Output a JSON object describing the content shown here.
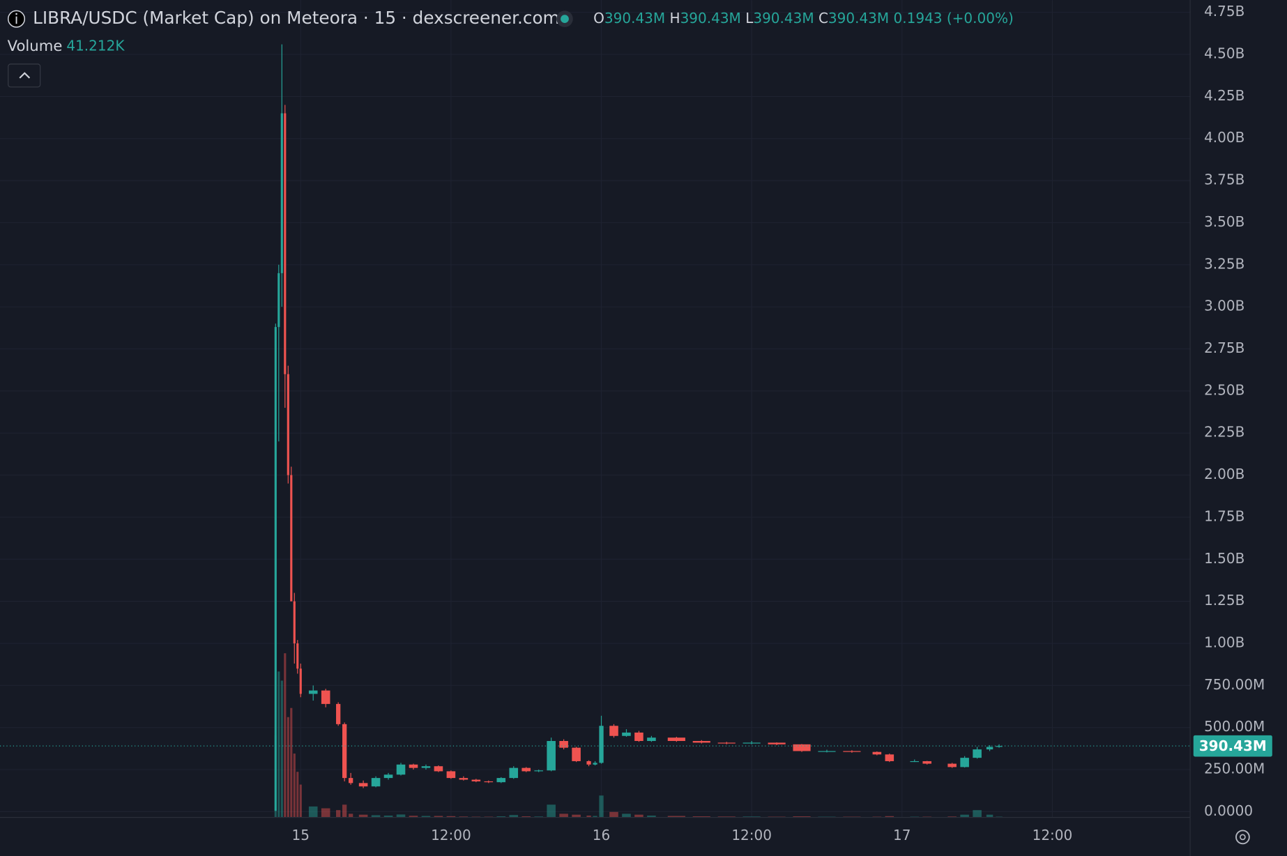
{
  "header": {
    "symbol": "LIBRA/USDC (Market Cap) on Meteora · 15 · dexscreener.com",
    "ohlc": [
      {
        "key": "O",
        "value": "390.43M"
      },
      {
        "key": "H",
        "value": "390.43M"
      },
      {
        "key": "L",
        "value": "390.43M"
      },
      {
        "key": "C",
        "value": "390.43M"
      }
    ],
    "change": "0.1943 (+0.00%)",
    "volume_title": "Volume",
    "volume_last": "41.212K"
  },
  "chart_data": {
    "type": "candlestick",
    "x": [
      -2,
      -1.75,
      -1.5,
      -1.25,
      -1,
      -0.75,
      -0.5,
      -0.25,
      0,
      1,
      2,
      3,
      3.5,
      4,
      5,
      6,
      7,
      8,
      9,
      10,
      11,
      12,
      13,
      14,
      15,
      16,
      17,
      18,
      19,
      20,
      21,
      22,
      23,
      23.5,
      24,
      25,
      26,
      27,
      28,
      30,
      32,
      34,
      36,
      38,
      40,
      42,
      44,
      46,
      47,
      49,
      50,
      52,
      53,
      54,
      55,
      55.75
    ],
    "open": [
      5,
      2880,
      3200,
      4150,
      2600,
      2000,
      1250,
      1000,
      850,
      700,
      720,
      640,
      520,
      200,
      170,
      150,
      200,
      220,
      280,
      260,
      270,
      240,
      200,
      190,
      180,
      175,
      200,
      260,
      240,
      245,
      420,
      380,
      300,
      280,
      290,
      510,
      450,
      470,
      420,
      440,
      420,
      410,
      405,
      410,
      400,
      360,
      360,
      355,
      340,
      300,
      300,
      285,
      265,
      320,
      370,
      385
    ],
    "high": [
      2900,
      3250,
      4560,
      4200,
      2650,
      2050,
      1300,
      1020,
      880,
      750,
      730,
      650,
      530,
      230,
      185,
      210,
      230,
      290,
      285,
      280,
      275,
      245,
      210,
      195,
      185,
      205,
      270,
      265,
      250,
      440,
      430,
      385,
      305,
      300,
      570,
      520,
      490,
      480,
      450,
      445,
      425,
      415,
      420,
      412,
      402,
      368,
      365,
      358,
      345,
      310,
      302,
      290,
      330,
      385,
      395,
      400
    ],
    "low": [
      5,
      2200,
      3000,
      2400,
      1950,
      1250,
      880,
      820,
      680,
      660,
      620,
      510,
      180,
      160,
      140,
      145,
      190,
      215,
      250,
      250,
      235,
      195,
      185,
      175,
      170,
      170,
      195,
      235,
      235,
      240,
      370,
      295,
      270,
      275,
      285,
      440,
      445,
      415,
      415,
      415,
      405,
      400,
      400,
      395,
      355,
      352,
      350,
      335,
      295,
      295,
      280,
      260,
      262,
      315,
      360,
      380
    ],
    "close": [
      2880,
      3200,
      4150,
      2600,
      2000,
      1250,
      1000,
      850,
      700,
      720,
      640,
      520,
      200,
      170,
      150,
      200,
      220,
      280,
      260,
      270,
      240,
      200,
      190,
      180,
      175,
      200,
      260,
      240,
      245,
      420,
      380,
      300,
      280,
      290,
      510,
      450,
      470,
      420,
      440,
      420,
      410,
      405,
      410,
      400,
      360,
      360,
      355,
      340,
      300,
      300,
      285,
      265,
      320,
      370,
      385,
      390.43
    ],
    "volume": [
      4500,
      8000,
      7500,
      9000,
      5500,
      6000,
      3500,
      2500,
      1800,
      600,
      500,
      400,
      700,
      200,
      150,
      120,
      100,
      160,
      90,
      80,
      80,
      70,
      50,
      40,
      40,
      60,
      130,
      60,
      50,
      700,
      200,
      150,
      100,
      80,
      1200,
      300,
      200,
      150,
      100,
      80,
      60,
      50,
      50,
      40,
      60,
      40,
      40,
      40,
      70,
      40,
      40,
      50,
      150,
      400,
      150,
      41.212
    ],
    "up_color": "#26a69a",
    "down_color": "#ef5350",
    "xlim": [
      -24,
      71
    ],
    "xticks": [
      {
        "value": 0,
        "label": "15"
      },
      {
        "value": 12,
        "label": "12:00"
      },
      {
        "value": 24,
        "label": "16"
      },
      {
        "value": 36,
        "label": "12:00"
      },
      {
        "value": 48,
        "label": "17"
      },
      {
        "value": 60,
        "label": "12:00"
      }
    ],
    "ylim": [
      0,
      4750
    ],
    "yticks": [
      {
        "value": 0,
        "label": "0.0000"
      },
      {
        "value": 250,
        "label": "250.00M"
      },
      {
        "value": 500,
        "label": "500.00M"
      },
      {
        "value": 750,
        "label": "750.00M"
      },
      {
        "value": 1000,
        "label": "1.00B"
      },
      {
        "value": 1250,
        "label": "1.25B"
      },
      {
        "value": 1500,
        "label": "1.50B"
      },
      {
        "value": 1750,
        "label": "1.75B"
      },
      {
        "value": 2000,
        "label": "2.00B"
      },
      {
        "value": 2250,
        "label": "2.25B"
      },
      {
        "value": 2500,
        "label": "2.50B"
      },
      {
        "value": 2750,
        "label": "2.75B"
      },
      {
        "value": 3000,
        "label": "3.00B"
      },
      {
        "value": 3250,
        "label": "3.25B"
      },
      {
        "value": 3500,
        "label": "3.50B"
      },
      {
        "value": 3750,
        "label": "3.75B"
      },
      {
        "value": 4000,
        "label": "4.00B"
      },
      {
        "value": 4250,
        "label": "4.25B"
      },
      {
        "value": 4500,
        "label": "4.50B"
      },
      {
        "value": 4750,
        "label": "4.75B"
      }
    ],
    "price_line": {
      "value": 390.43,
      "label": "390.43M"
    },
    "grid": true
  }
}
